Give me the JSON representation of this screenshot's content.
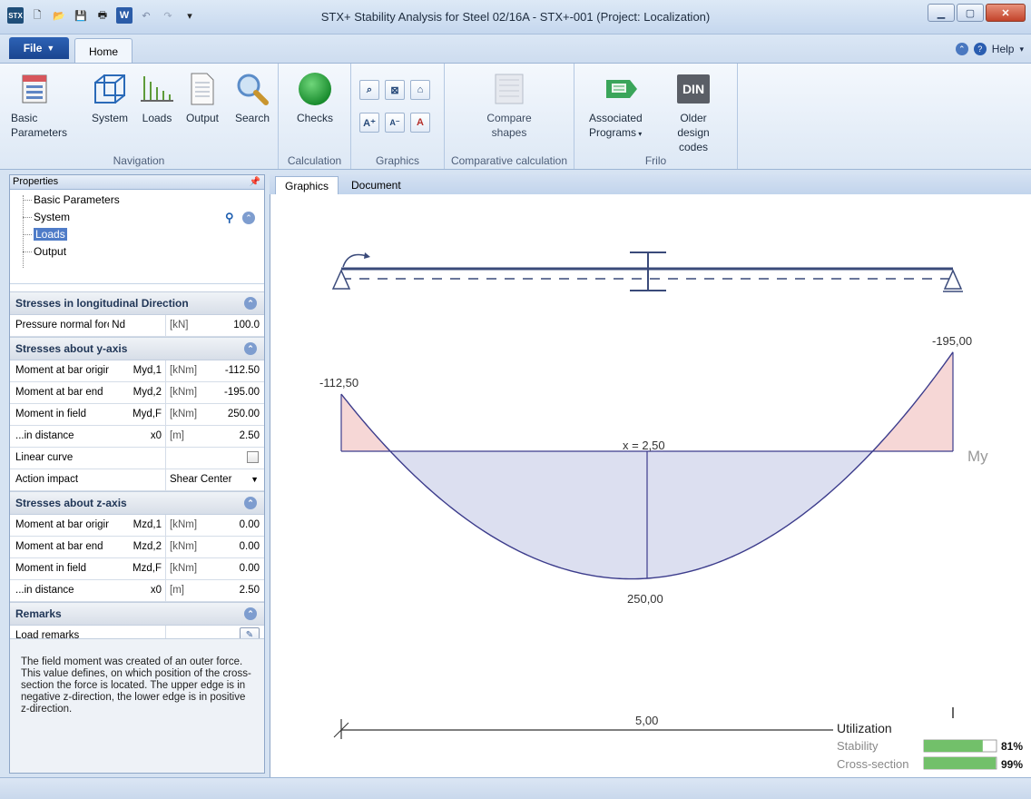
{
  "window": {
    "title": "STX+ Stability Analysis for Steel 02/16A - STX+-001 (Project: Localization)",
    "logo_text": "STX"
  },
  "ribbon_tabs": {
    "file": "File",
    "home": "Home",
    "help": "Help"
  },
  "ribbon": {
    "navigation": {
      "label": "Navigation",
      "basic_params": "Basic Parameters",
      "system": "System",
      "loads": "Loads",
      "output": "Output",
      "search": "Search"
    },
    "calculation": {
      "label": "Calculation",
      "checks": "Checks"
    },
    "graphics": {
      "label": "Graphics"
    },
    "comparative": {
      "label": "Comparative calculation",
      "compare_shapes": "Compare shapes"
    },
    "frilo": {
      "label": "Frilo",
      "associated_programs": "Associated Programs",
      "older_codes": "Older design codes",
      "din": "DIN"
    }
  },
  "left_panel": {
    "header": "Properties",
    "tree": [
      "Basic Parameters",
      "System",
      "Loads",
      "Output"
    ],
    "selected_tree_item": "Loads",
    "sections": {
      "longitudinal": {
        "title": "Stresses in longitudinal Direction",
        "rows": [
          {
            "label": "Pressure normal force",
            "symbol": "Nd",
            "unit": "[kN]",
            "value": "100.0"
          }
        ]
      },
      "y_axis": {
        "title": "Stresses about y-axis",
        "rows": [
          {
            "label": "Moment at bar origin",
            "symbol": "Myd,1",
            "unit": "[kNm]",
            "value": "-112.50"
          },
          {
            "label": "Moment at bar end",
            "symbol": "Myd,2",
            "unit": "[kNm]",
            "value": "-195.00"
          },
          {
            "label": "Moment in field",
            "symbol": "Myd,F",
            "unit": "[kNm]",
            "value": "250.00"
          },
          {
            "label": "...in distance",
            "symbol": "x0",
            "unit": "[m]",
            "value": "2.50"
          }
        ],
        "linear_curve_label": "Linear curve",
        "linear_curve_checked": false,
        "action_impact_label": "Action impact",
        "action_impact_value": "Shear Center"
      },
      "z_axis": {
        "title": "Stresses about z-axis",
        "rows": [
          {
            "label": "Moment at bar origin",
            "symbol": "Mzd,1",
            "unit": "[kNm]",
            "value": "0.00"
          },
          {
            "label": "Moment at bar end",
            "symbol": "Mzd,2",
            "unit": "[kNm]",
            "value": "0.00"
          },
          {
            "label": "Moment in field",
            "symbol": "Mzd,F",
            "unit": "[kNm]",
            "value": "0.00"
          },
          {
            "label": "...in distance",
            "symbol": "x0",
            "unit": "[m]",
            "value": "2.50"
          }
        ]
      },
      "remarks": {
        "title": "Remarks",
        "load_remarks_label": "Load remarks"
      }
    },
    "help_text": "The field moment was created of an outer force. This value defines, on which position of the cross-section the force is located. The upper edge is in negative z-direction, the lower edge is in positive z-direction."
  },
  "main_tabs": [
    "Graphics",
    "Document"
  ],
  "active_main_tab": "Graphics",
  "graphic": {
    "moment_label": "My",
    "start_value_label": "-112,50",
    "end_value_label": "-195,00",
    "field_value_label": "250,00",
    "position_label": "x = 2,50",
    "span_label": "5,00",
    "moment_values": {
      "M1": -112.5,
      "M2": -195.0,
      "MF": 250.0,
      "x0": 2.5,
      "length": 5.0
    }
  },
  "utilization": {
    "title": "Utilization",
    "items": [
      {
        "label": "Stability",
        "percent": 81,
        "text": "81%"
      },
      {
        "label": "Cross-section",
        "percent": 99,
        "text": "99%"
      }
    ],
    "bar_color": "#72c06a"
  },
  "colors": {
    "negative_fill": "#f6d7d6",
    "negative_stroke": "#d08a8a",
    "positive_fill": "#dcdff0",
    "curve_stroke": "#3c3c8c",
    "beam_stroke": "#3a4a7a",
    "select_blue": "#4f7cc8"
  }
}
